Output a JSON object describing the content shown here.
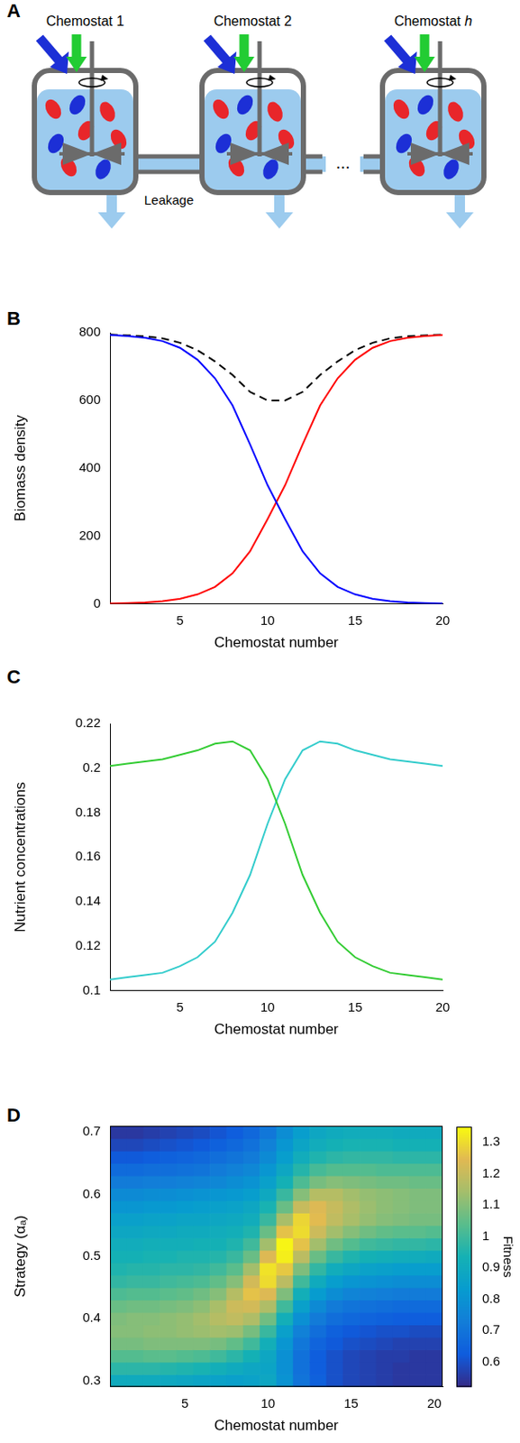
{
  "diagram": {
    "panel": "A",
    "chemostats": [
      "Chemostat 1",
      "Chemostat 2",
      "Chemostat h"
    ],
    "connector_label": "Leakage",
    "ellipsis": "..."
  },
  "chart_data": [
    {
      "panel": "B",
      "type": "line",
      "x": [
        1,
        2,
        3,
        4,
        5,
        6,
        7,
        8,
        9,
        10,
        11,
        12,
        13,
        14,
        15,
        16,
        17,
        18,
        19,
        20
      ],
      "xlim": [
        1,
        20
      ],
      "xticks": [
        5,
        10,
        15,
        20
      ],
      "ylim": [
        0,
        800
      ],
      "yticks": [
        0,
        200,
        400,
        600,
        800
      ],
      "xlabel": "Chemostat number",
      "ylabel": "Biomass density",
      "grid": false,
      "series": [
        {
          "color": "#0000ff",
          "line_style": "solid",
          "values": [
            793,
            790,
            785,
            775,
            755,
            720,
            665,
            585,
            470,
            350,
            250,
            155,
            90,
            50,
            28,
            15,
            8,
            4,
            2,
            1
          ]
        },
        {
          "color": "#ff0000",
          "line_style": "solid",
          "values": [
            1,
            2,
            4,
            8,
            15,
            28,
            50,
            90,
            155,
            250,
            350,
            470,
            585,
            665,
            720,
            755,
            775,
            785,
            790,
            793
          ]
        },
        {
          "color": "#000000",
          "line_style": "dashed",
          "values": [
            794,
            792,
            789,
            783,
            770,
            748,
            715,
            675,
            625,
            600,
            600,
            625,
            675,
            715,
            748,
            770,
            783,
            789,
            792,
            794
          ]
        }
      ]
    },
    {
      "panel": "C",
      "type": "line",
      "x": [
        1,
        2,
        3,
        4,
        5,
        6,
        7,
        8,
        9,
        10,
        11,
        12,
        13,
        14,
        15,
        16,
        17,
        18,
        19,
        20
      ],
      "xlim": [
        1,
        20
      ],
      "xticks": [
        5,
        10,
        15,
        20
      ],
      "ylim": [
        0.1,
        0.22
      ],
      "yticks": [
        0.1,
        0.12,
        0.14,
        0.16,
        0.18,
        0.2,
        0.22
      ],
      "xlabel": "Chemostat number",
      "ylabel": "Nutrient concentrations",
      "grid": false,
      "series": [
        {
          "color": "#33cc33",
          "line_style": "solid",
          "values": [
            0.201,
            0.202,
            0.203,
            0.204,
            0.206,
            0.208,
            0.211,
            0.212,
            0.208,
            0.195,
            0.175,
            0.152,
            0.135,
            0.122,
            0.115,
            0.111,
            0.108,
            0.107,
            0.106,
            0.105
          ]
        },
        {
          "color": "#33cccc",
          "line_style": "solid",
          "values": [
            0.105,
            0.106,
            0.107,
            0.108,
            0.111,
            0.115,
            0.122,
            0.135,
            0.152,
            0.175,
            0.195,
            0.208,
            0.212,
            0.211,
            0.208,
            0.206,
            0.204,
            0.203,
            0.202,
            0.201
          ]
        }
      ]
    },
    {
      "panel": "D",
      "type": "heatmap",
      "x": [
        1,
        2,
        3,
        4,
        5,
        6,
        7,
        8,
        9,
        10,
        11,
        12,
        13,
        14,
        15,
        16,
        17,
        18,
        19,
        20
      ],
      "y": [
        0.3,
        0.32,
        0.34,
        0.36,
        0.38,
        0.4,
        0.42,
        0.44,
        0.46,
        0.48,
        0.5,
        0.52,
        0.54,
        0.56,
        0.58,
        0.6,
        0.62,
        0.64,
        0.66,
        0.68,
        0.7
      ],
      "xlim": [
        0.5,
        20.5
      ],
      "xticks": [
        5,
        10,
        15,
        20
      ],
      "ylim": [
        0.29,
        0.71
      ],
      "yticks": [
        0.3,
        0.4,
        0.5,
        0.6,
        0.7
      ],
      "xlabel": "Chemostat number",
      "ylabel": "Strategy (αₐ)",
      "cells": [
        [
          0.9,
          0.97,
          1.03,
          1.08,
          1.1,
          1.09,
          1.06,
          1.02,
          0.98,
          0.95,
          0.93,
          0.91,
          0.88,
          0.85,
          0.81,
          0.77,
          0.72,
          0.67,
          0.62,
          0.58,
          0.55
        ],
        [
          0.9,
          0.97,
          1.03,
          1.08,
          1.1,
          1.1,
          1.07,
          1.03,
          0.99,
          0.96,
          0.93,
          0.91,
          0.88,
          0.85,
          0.81,
          0.77,
          0.72,
          0.67,
          0.62,
          0.58,
          0.55
        ],
        [
          0.9,
          0.97,
          1.04,
          1.09,
          1.11,
          1.1,
          1.07,
          1.03,
          0.99,
          0.96,
          0.94,
          0.92,
          0.89,
          0.86,
          0.82,
          0.78,
          0.73,
          0.68,
          0.63,
          0.59,
          0.56
        ],
        [
          0.89,
          0.96,
          1.04,
          1.09,
          1.11,
          1.11,
          1.08,
          1.04,
          1.0,
          0.97,
          0.94,
          0.92,
          0.89,
          0.86,
          0.82,
          0.78,
          0.73,
          0.68,
          0.64,
          0.6,
          0.57
        ],
        [
          0.88,
          0.95,
          1.03,
          1.09,
          1.12,
          1.12,
          1.09,
          1.05,
          1.01,
          0.97,
          0.95,
          0.92,
          0.9,
          0.87,
          0.83,
          0.79,
          0.74,
          0.69,
          0.65,
          0.61,
          0.58
        ],
        [
          0.87,
          0.94,
          1.02,
          1.09,
          1.13,
          1.14,
          1.11,
          1.07,
          1.02,
          0.98,
          0.95,
          0.93,
          0.9,
          0.87,
          0.84,
          0.8,
          0.75,
          0.7,
          0.66,
          0.62,
          0.59
        ],
        [
          0.86,
          0.92,
          1.0,
          1.08,
          1.14,
          1.17,
          1.15,
          1.1,
          1.05,
          1.0,
          0.96,
          0.93,
          0.91,
          0.88,
          0.85,
          0.81,
          0.76,
          0.72,
          0.68,
          0.64,
          0.61
        ],
        [
          0.85,
          0.9,
          0.97,
          1.05,
          1.13,
          1.19,
          1.21,
          1.17,
          1.1,
          1.04,
          0.99,
          0.95,
          0.92,
          0.89,
          0.86,
          0.82,
          0.78,
          0.74,
          0.7,
          0.66,
          0.63
        ],
        [
          0.86,
          0.88,
          0.93,
          1.0,
          1.08,
          1.16,
          1.22,
          1.26,
          1.22,
          1.14,
          1.06,
          1.0,
          0.95,
          0.91,
          0.88,
          0.84,
          0.8,
          0.76,
          0.72,
          0.69,
          0.66
        ],
        [
          0.88,
          0.87,
          0.88,
          0.92,
          0.99,
          1.07,
          1.16,
          1.24,
          1.3,
          1.31,
          1.24,
          1.14,
          1.06,
          0.99,
          0.94,
          0.89,
          0.85,
          0.81,
          0.77,
          0.74,
          0.71
        ],
        [
          0.8,
          0.79,
          0.79,
          0.81,
          0.85,
          0.92,
          1.0,
          1.09,
          1.18,
          1.27,
          1.33,
          1.34,
          1.26,
          1.15,
          1.06,
          0.99,
          0.93,
          0.88,
          0.84,
          0.81,
          0.78
        ],
        [
          0.7,
          0.69,
          0.69,
          0.71,
          0.74,
          0.79,
          0.85,
          0.92,
          1.0,
          1.09,
          1.18,
          1.26,
          1.3,
          1.29,
          1.2,
          1.1,
          1.02,
          0.96,
          0.91,
          0.87,
          0.84
        ],
        [
          0.64,
          0.63,
          0.63,
          0.65,
          0.68,
          0.72,
          0.77,
          0.83,
          0.9,
          0.98,
          1.06,
          1.14,
          1.21,
          1.25,
          1.24,
          1.17,
          1.08,
          1.01,
          0.95,
          0.91,
          0.88
        ],
        [
          0.6,
          0.6,
          0.6,
          0.62,
          0.64,
          0.68,
          0.72,
          0.78,
          0.84,
          0.91,
          0.99,
          1.07,
          1.14,
          1.19,
          1.2,
          1.17,
          1.1,
          1.03,
          0.97,
          0.93,
          0.9
        ],
        [
          0.58,
          0.58,
          0.58,
          0.6,
          0.62,
          0.66,
          0.7,
          0.75,
          0.81,
          0.88,
          0.95,
          1.03,
          1.1,
          1.15,
          1.16,
          1.14,
          1.09,
          1.03,
          0.98,
          0.94,
          0.91
        ],
        [
          0.57,
          0.57,
          0.57,
          0.59,
          0.61,
          0.65,
          0.69,
          0.74,
          0.8,
          0.86,
          0.93,
          1.0,
          1.07,
          1.12,
          1.13,
          1.12,
          1.08,
          1.03,
          0.98,
          0.94,
          0.91
        ],
        [
          0.56,
          0.56,
          0.56,
          0.58,
          0.6,
          0.64,
          0.68,
          0.73,
          0.79,
          0.85,
          0.92,
          0.99,
          1.05,
          1.1,
          1.11,
          1.11,
          1.07,
          1.02,
          0.98,
          0.94,
          0.91
        ],
        [
          0.55,
          0.55,
          0.56,
          0.57,
          0.6,
          0.63,
          0.67,
          0.72,
          0.78,
          0.84,
          0.91,
          0.98,
          1.04,
          1.09,
          1.1,
          1.1,
          1.07,
          1.02,
          0.97,
          0.93,
          0.9
        ],
        [
          0.55,
          0.55,
          0.55,
          0.57,
          0.59,
          0.63,
          0.67,
          0.72,
          0.78,
          0.84,
          0.91,
          0.98,
          1.04,
          1.08,
          1.09,
          1.09,
          1.06,
          1.02,
          0.97,
          0.93,
          0.9
        ],
        [
          0.55,
          0.55,
          0.55,
          0.57,
          0.59,
          0.63,
          0.67,
          0.72,
          0.78,
          0.84,
          0.9,
          0.97,
          1.03,
          1.08,
          1.09,
          1.09,
          1.06,
          1.02,
          0.97,
          0.93,
          0.9
        ]
      ],
      "colorbar": {
        "label": "Fitness",
        "range": [
          0.52,
          1.35
        ],
        "ticks": [
          0.6,
          0.7,
          0.8,
          0.9,
          1,
          1.1,
          1.2,
          1.3
        ]
      }
    }
  ]
}
